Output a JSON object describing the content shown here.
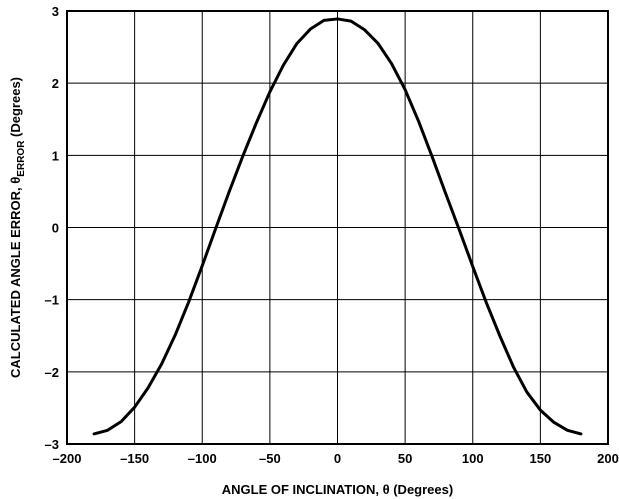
{
  "chart_data": {
    "type": "line",
    "title": "",
    "xlabel": "ANGLE OF INCLINATION, θ (Degrees)",
    "ylabel": {
      "prefix": "CALCULATED ANGLE ERROR, θ",
      "subscript": "ERROR",
      "suffix": " (Degrees)"
    },
    "xlim": [
      -200,
      200
    ],
    "ylim": [
      -3,
      3
    ],
    "xticks": [
      -200,
      -150,
      -100,
      -50,
      0,
      50,
      100,
      150,
      200
    ],
    "xtick_labels": [
      "–200",
      "–150",
      "–100",
      "–50",
      "0",
      "50",
      "100",
      "150",
      "200"
    ],
    "yticks": [
      -3,
      -2,
      -1,
      0,
      1,
      2,
      3
    ],
    "ytick_labels": [
      "–3",
      "–2",
      "–1",
      "0",
      "1",
      "2",
      "3"
    ],
    "grid": true,
    "legend": false,
    "series": [
      {
        "color": "#000000",
        "x": [
          -180,
          -170,
          -160,
          -150,
          -140,
          -130,
          -120,
          -110,
          -100,
          -90,
          -80,
          -70,
          -60,
          -50,
          -40,
          -30,
          -20,
          -10,
          0,
          10,
          20,
          30,
          40,
          50,
          60,
          70,
          80,
          90,
          100,
          110,
          120,
          130,
          140,
          150,
          160,
          170,
          180
        ],
        "y": [
          -2.86,
          -2.81,
          -2.69,
          -2.49,
          -2.22,
          -1.89,
          -1.49,
          -1.03,
          -0.53,
          -0.01,
          0.5,
          0.99,
          1.45,
          1.88,
          2.25,
          2.55,
          2.75,
          2.87,
          2.89,
          2.86,
          2.74,
          2.55,
          2.27,
          1.91,
          1.47,
          0.98,
          0.47,
          -0.03,
          -0.54,
          -1.04,
          -1.5,
          -1.93,
          -2.28,
          -2.53,
          -2.7,
          -2.81,
          -2.86
        ]
      }
    ]
  }
}
